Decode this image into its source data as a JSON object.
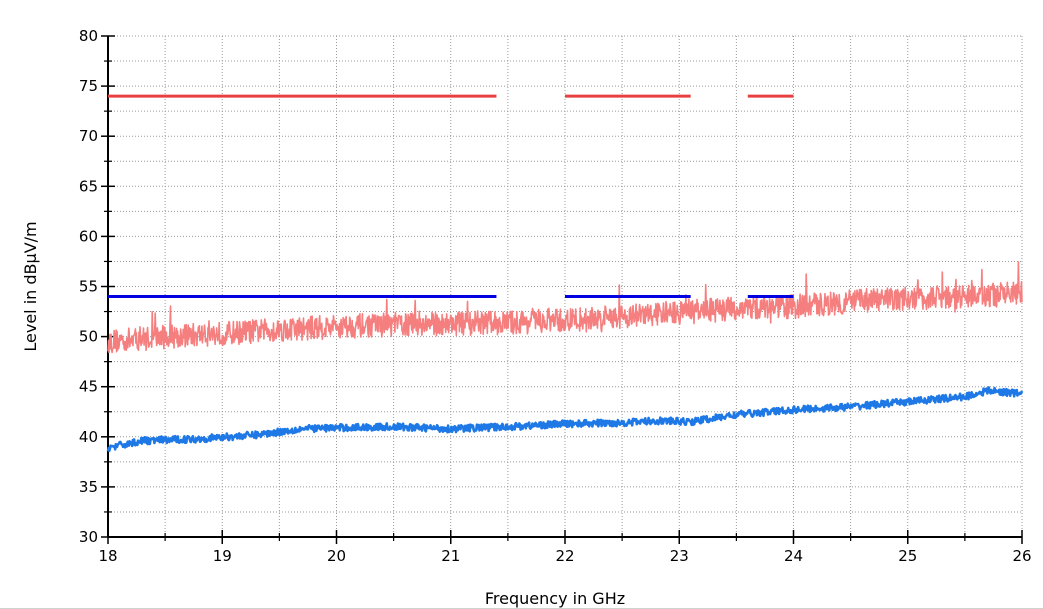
{
  "chart_data": {
    "type": "line",
    "xlabel": "Frequency in GHz",
    "ylabel": "Level in dBµV/m",
    "xlim": [
      18,
      26
    ],
    "ylim": [
      30,
      80
    ],
    "x_ticks": [
      18,
      19,
      20,
      21,
      22,
      23,
      24,
      25,
      26
    ],
    "y_ticks": [
      30,
      35,
      40,
      45,
      50,
      55,
      60,
      65,
      70,
      75,
      80
    ],
    "grid": true,
    "series": [
      {
        "style": "noisy-trace",
        "color": "#f57f7f",
        "x": [
          18.0,
          18.5,
          19.0,
          19.5,
          20.0,
          20.5,
          21.0,
          21.5,
          22.0,
          22.5,
          23.0,
          23.5,
          24.0,
          24.5,
          25.0,
          25.5,
          26.0
        ],
        "values": [
          49.5,
          50.0,
          50.3,
          50.7,
          51.0,
          51.2,
          51.3,
          51.4,
          51.6,
          52.0,
          52.4,
          52.8,
          53.0,
          53.5,
          53.8,
          54.0,
          54.3
        ],
        "noise_band": 2.4
      },
      {
        "style": "trace",
        "color": "#1e78e6",
        "x": [
          18.0,
          18.3,
          18.8,
          19.3,
          19.7,
          20.0,
          20.5,
          21.0,
          21.5,
          22.0,
          22.5,
          22.8,
          23.1,
          23.5,
          24.0,
          24.5,
          25.0,
          25.5,
          25.7,
          26.0
        ],
        "values": [
          38.9,
          39.6,
          39.8,
          40.2,
          40.8,
          40.9,
          41.0,
          40.8,
          41.0,
          41.3,
          41.4,
          41.6,
          41.5,
          42.2,
          42.7,
          43.0,
          43.5,
          44.0,
          44.6,
          44.3
        ],
        "noise_band": 0.7
      }
    ],
    "limit_lines": [
      {
        "color": "#e84040",
        "value": 74,
        "segments": [
          [
            18.0,
            21.4
          ],
          [
            22.0,
            23.1
          ],
          [
            23.6,
            24.0
          ]
        ]
      },
      {
        "color": "#0000e0",
        "value": 54,
        "segments": [
          [
            18.0,
            21.4
          ],
          [
            22.0,
            23.1
          ],
          [
            23.6,
            24.0
          ]
        ]
      }
    ]
  }
}
